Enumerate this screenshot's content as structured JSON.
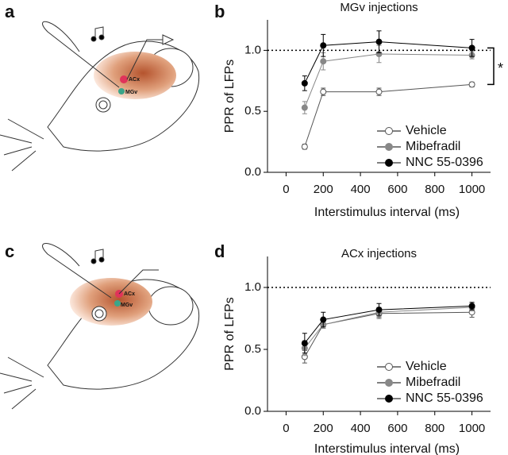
{
  "panel_labels": [
    "a",
    "b",
    "c",
    "d"
  ],
  "illustrations": [
    {
      "labels": [
        "ACx",
        "MGv"
      ]
    },
    {
      "labels": [
        "ACx",
        "MGv"
      ]
    }
  ],
  "chart_data": [
    {
      "type": "line",
      "title": "MGv injections",
      "x_label": "Interstimulus interval (ms)",
      "y_label": "PPR of LFPs",
      "x": [
        100,
        200,
        500,
        1000
      ],
      "xlim": [
        -100,
        1100
      ],
      "xticks": [
        0,
        200,
        400,
        600,
        800,
        1000
      ],
      "ylim": [
        0,
        1.25
      ],
      "yticks": [
        {
          "value": 0,
          "label": "0.0"
        },
        0.5,
        {
          "value": 1,
          "label": "1.0"
        }
      ],
      "reference_line": 1,
      "annotation": "*",
      "legend": "lower right",
      "series": [
        {
          "name": "Vehicle",
          "color": "#555555",
          "marker_fill": "#ffffff",
          "values": [
            0.21,
            0.66,
            0.66,
            0.72
          ],
          "errors": [
            0.02,
            0.03,
            0.03,
            0.02
          ]
        },
        {
          "name": "Mibefradil",
          "color": "#888888",
          "marker_fill": "#888888",
          "values": [
            0.53,
            0.91,
            0.97,
            0.96
          ],
          "errors": [
            0.05,
            0.07,
            0.07,
            0.03
          ]
        },
        {
          "name": "NNC 55-0396",
          "color": "#000000",
          "marker_fill": "#000000",
          "values": [
            0.73,
            1.04,
            1.07,
            1.02
          ],
          "errors": [
            0.06,
            0.09,
            0.09,
            0.07
          ]
        }
      ]
    },
    {
      "type": "line",
      "title": "ACx injections",
      "x_label": "Interstimulus interval (ms)",
      "y_label": "PPR of LFPs",
      "x": [
        100,
        200,
        500,
        1000
      ],
      "xlim": [
        -100,
        1100
      ],
      "xticks": [
        0,
        200,
        400,
        600,
        800,
        1000
      ],
      "ylim": [
        0,
        1.25
      ],
      "yticks": [
        {
          "value": 0,
          "label": "0.0"
        },
        0.5,
        {
          "value": 1,
          "label": "1.0"
        }
      ],
      "reference_line": 1,
      "legend": "lower right",
      "series": [
        {
          "name": "Vehicle",
          "color": "#555555",
          "marker_fill": "#ffffff",
          "values": [
            0.44,
            0.7,
            0.79,
            0.8
          ],
          "errors": [
            0.05,
            0.03,
            0.04,
            0.04
          ]
        },
        {
          "name": "Mibefradil",
          "color": "#888888",
          "marker_fill": "#888888",
          "values": [
            0.51,
            0.7,
            0.8,
            0.84
          ],
          "errors": [
            0.06,
            0.03,
            0.04,
            0.03
          ]
        },
        {
          "name": "NNC 55-0396",
          "color": "#000000",
          "marker_fill": "#000000",
          "values": [
            0.55,
            0.74,
            0.82,
            0.85
          ],
          "errors": [
            0.08,
            0.06,
            0.05,
            0.03
          ]
        }
      ]
    }
  ]
}
